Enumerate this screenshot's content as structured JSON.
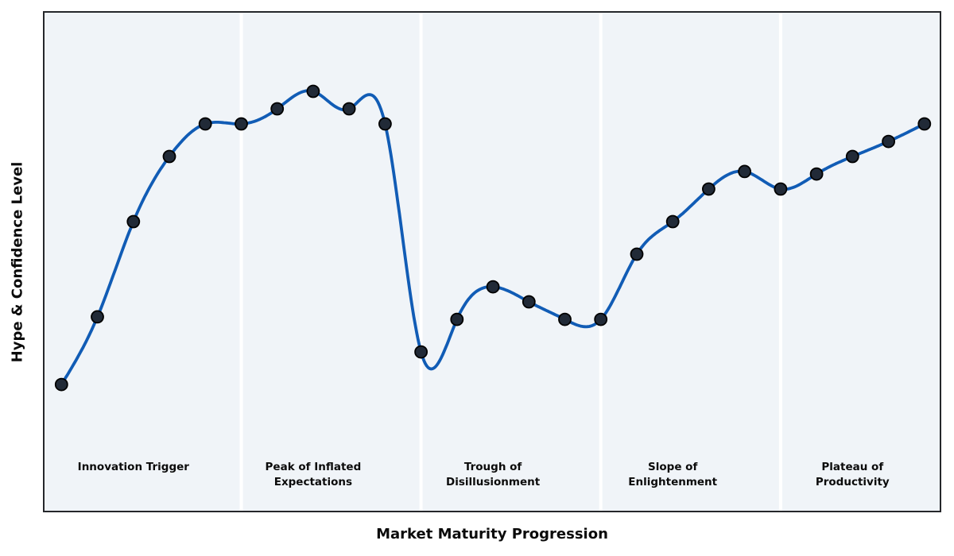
{
  "colors": {
    "figure_bg": "#ffffff",
    "panel_bg": "#f0f4f8",
    "panel_border": "#25272b",
    "line": "#115cb5",
    "marker_fill": "#212a37",
    "marker_edge": "#000000",
    "divider": "#ffffff",
    "text": "#0b0b0b"
  },
  "chart_data": {
    "type": "line",
    "title": "",
    "xlabel": "Market Maturity Progression",
    "ylabel": "Hype & Confidence Level",
    "x": [
      0,
      1,
      2,
      3,
      4,
      5,
      6,
      7,
      8,
      9,
      10,
      11,
      12,
      13,
      14,
      15,
      16,
      17,
      18,
      19,
      20,
      21,
      22,
      23,
      24
    ],
    "values": [
      25.5,
      39,
      58,
      71,
      77.5,
      77.5,
      80.5,
      84,
      80.5,
      77.5,
      32,
      38.5,
      45,
      42,
      38.5,
      38.5,
      51.5,
      58,
      64.5,
      68,
      64.5,
      67.5,
      71,
      74,
      77.5
    ],
    "xlim": [
      -0.5,
      24.5
    ],
    "ylim": [
      0,
      100
    ],
    "grid": false,
    "legend": false,
    "ticks": "none",
    "smoothing": "natural-cubic-spline",
    "marker": "circle",
    "divider_xs": [
      5,
      10,
      15,
      20
    ],
    "phases": [
      {
        "name": "Innovation Trigger",
        "label_lines": [
          "Innovation Trigger"
        ],
        "x_start": -0.5,
        "x_end": 5,
        "label_x": 2
      },
      {
        "name": "Peak of Inflated Expectations",
        "label_lines": [
          "Peak of Inflated",
          "Expectations"
        ],
        "x_start": 5,
        "x_end": 10,
        "label_x": 7
      },
      {
        "name": "Trough of Disillusionment",
        "label_lines": [
          "Trough of",
          "Disillusionment"
        ],
        "x_start": 10,
        "x_end": 15,
        "label_x": 12
      },
      {
        "name": "Slope of Enlightenment",
        "label_lines": [
          "Slope of",
          "Enlightenment"
        ],
        "x_start": 15,
        "x_end": 20,
        "label_x": 17
      },
      {
        "name": "Plateau of Productivity",
        "label_lines": [
          "Plateau of",
          "Productivity"
        ],
        "x_start": 20,
        "x_end": 24.5,
        "label_x": 22
      }
    ]
  }
}
